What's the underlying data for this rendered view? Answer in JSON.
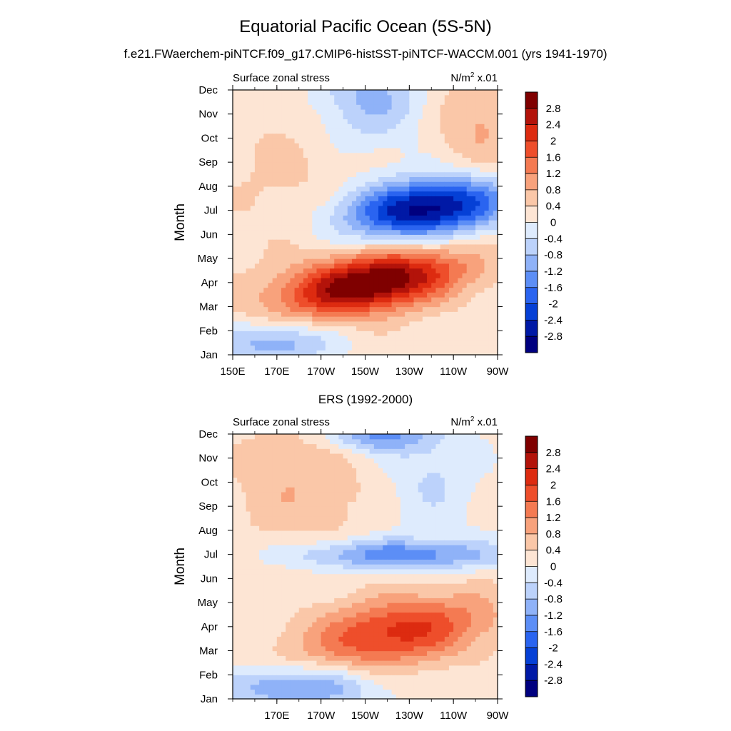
{
  "figure": {
    "title": "Equatorial Pacific Ocean (5S-5N)",
    "subtitle": "f.e21.FWaerchem-piNTCF.f09_g17.CMIP6-histSST-piNTCF-WACCM.001 (yrs 1941-1970)"
  },
  "colors": {
    "levels": [
      "#00007f",
      "#0019a6",
      "#0540d6",
      "#2a64f0",
      "#5c8ef6",
      "#8fb2f8",
      "#bcd2fb",
      "#deebfd",
      "#fde5d4",
      "#fac7a8",
      "#f8a27c",
      "#f47a52",
      "#ee4e2b",
      "#dd2b10",
      "#b3130a",
      "#7f0000"
    ],
    "labels": [
      "-2.8",
      "-2.4",
      "-2",
      "-1.6",
      "-1.2",
      "-0.8",
      "-0.4",
      "0",
      "0.4",
      "0.8",
      "1.2",
      "1.6",
      "2",
      "2.4",
      "2.8"
    ]
  },
  "chart_data": [
    {
      "type": "heatmap",
      "name": "model",
      "left_string": "Surface zonal stress",
      "right_string": "N/m",
      "right_sup": "2",
      "right_suffix": " x.01",
      "ylabel": "Month",
      "xlabel": "",
      "x_ticks": [
        "150E",
        "170E",
        "170W",
        "150W",
        "130W",
        "110W",
        "90W"
      ],
      "x_tick_values": [
        150,
        170,
        190,
        210,
        230,
        250,
        270
      ],
      "y_ticks": [
        "Jan",
        "Feb",
        "Mar",
        "Apr",
        "May",
        "Jun",
        "Jul",
        "Aug",
        "Sep",
        "Oct",
        "Nov",
        "Dec"
      ],
      "x_range": [
        150,
        270
      ],
      "y_range": [
        1,
        12
      ],
      "features": [
        {
          "x": 213,
          "y": 4.0,
          "sx": 28,
          "sy": 0.85,
          "amp": 3.2,
          "rot": -0.16
        },
        {
          "x": 238,
          "y": 7.1,
          "sx": 26,
          "sy": 0.85,
          "amp": -3.2,
          "rot": -0.1
        },
        {
          "x": 170,
          "y": 1.5,
          "sx": 18,
          "sy": 0.6,
          "amp": -1.3,
          "rot": 0
        },
        {
          "x": 212,
          "y": 11.7,
          "sx": 18,
          "sy": 1.4,
          "amp": -1.1,
          "rot": 0
        },
        {
          "x": 262,
          "y": 10.8,
          "sx": 14,
          "sy": 1.5,
          "amp": 0.7,
          "rot": 0
        },
        {
          "x": 175,
          "y": 8.5,
          "sx": 20,
          "sy": 2.5,
          "amp": 0.3,
          "rot": 0
        }
      ],
      "base": 0.2
    },
    {
      "type": "heatmap",
      "name": "observations",
      "title": "ERS (1992-2000)",
      "left_string": "Surface zonal stress",
      "right_string": "N/m",
      "right_sup": "2",
      "right_suffix": " x.01",
      "ylabel": "Month",
      "xlabel": "",
      "x_ticks": [
        "170E",
        "170W",
        "150W",
        "130W",
        "110W",
        "90W"
      ],
      "x_tick_values": [
        170,
        190,
        210,
        230,
        250,
        270
      ],
      "y_ticks": [
        "Jan",
        "Feb",
        "Mar",
        "Apr",
        "May",
        "Jun",
        "Jul",
        "Aug",
        "Sep",
        "Oct",
        "Nov",
        "Dec"
      ],
      "x_range": [
        150,
        270
      ],
      "y_range": [
        1,
        12
      ],
      "features": [
        {
          "x": 225,
          "y": 3.8,
          "sx": 30,
          "sy": 1.0,
          "amp": 2.0,
          "rot": -0.12
        },
        {
          "x": 225,
          "y": 7.0,
          "sx": 34,
          "sy": 0.45,
          "amp": -1.6,
          "rot": 0
        },
        {
          "x": 180,
          "y": 1.5,
          "sx": 24,
          "sy": 0.6,
          "amp": -1.5,
          "rot": 0
        },
        {
          "x": 215,
          "y": 12.0,
          "sx": 16,
          "sy": 0.5,
          "amp": -1.5,
          "rot": 0
        },
        {
          "x": 180,
          "y": 10.0,
          "sx": 22,
          "sy": 2.0,
          "amp": 0.6,
          "rot": 0
        },
        {
          "x": 240,
          "y": 10.3,
          "sx": 14,
          "sy": 1.6,
          "amp": -0.6,
          "rot": 0
        }
      ],
      "base": 0.15
    }
  ]
}
